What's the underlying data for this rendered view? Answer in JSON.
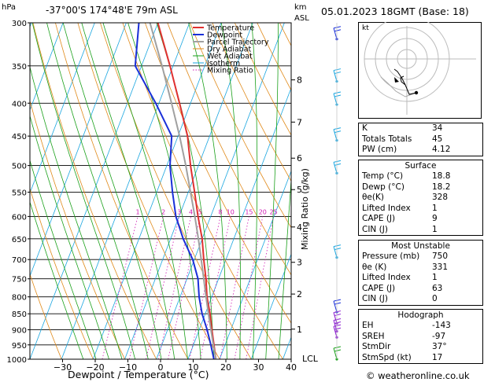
{
  "header": {
    "hpa": "hPa",
    "location": "-37°00'S  174°48'E  79m  ASL",
    "km": "km",
    "asl": "ASL",
    "datetime": "05.01.2023  18GMT  (Base: 18)"
  },
  "axes": {
    "xlabel": "Dewpoint / Temperature (°C)",
    "ylabel_right": "Mixing Ratio (g/kg)",
    "lcl": "LCL",
    "footer": "© weatheronline.co.uk",
    "kt": "kt"
  },
  "legend": [
    "Temperature",
    "Dewpoint",
    "Parcel Trajectory",
    "Dry Adiabat",
    "Wet Adiabat",
    "Isotherm",
    "Mixing Ratio"
  ],
  "colors": {
    "temperature": "#e03030",
    "dewpoint": "#1a2fd8",
    "parcel": "#a0a0a0",
    "dry_adiabat": "#e08a1a",
    "wet_adiabat": "#1aa01a",
    "isotherm": "#1aa6e0",
    "mixing_ratio": "#d01ab4"
  },
  "indices": [
    {
      "k": "K",
      "v": "34"
    },
    {
      "k": "Totals Totals",
      "v": "45"
    },
    {
      "k": "PW (cm)",
      "v": "4.12"
    }
  ],
  "surface": {
    "title": "Surface",
    "rows": [
      {
        "k": "Temp (°C)",
        "v": "18.8"
      },
      {
        "k": "Dewp (°C)",
        "v": "18.2"
      },
      {
        "k": "θe(K)",
        "v": "328"
      },
      {
        "k": "Lifted Index",
        "v": "1"
      },
      {
        "k": "CAPE (J)",
        "v": "9"
      },
      {
        "k": "CIN (J)",
        "v": "1"
      }
    ]
  },
  "most_unstable": {
    "title": "Most Unstable",
    "rows": [
      {
        "k": "Pressure (mb)",
        "v": "750"
      },
      {
        "k": "θe (K)",
        "v": "331"
      },
      {
        "k": "Lifted Index",
        "v": "1"
      },
      {
        "k": "CAPE (J)",
        "v": "63"
      },
      {
        "k": "CIN (J)",
        "v": "0"
      }
    ]
  },
  "hodograph": {
    "title": "Hodograph",
    "rows": [
      {
        "k": "EH",
        "v": "-143"
      },
      {
        "k": "SREH",
        "v": "-97"
      },
      {
        "k": "StmDir",
        "v": "37°"
      },
      {
        "k": "StmSpd (kt)",
        "v": "17"
      }
    ]
  },
  "chart_data": {
    "type": "line",
    "title": "",
    "xlabel": "Dewpoint / Temperature (°C)",
    "ylabel": "hPa",
    "xlim": [
      -40,
      40
    ],
    "ylim": [
      1000,
      300
    ],
    "pressure_ticks": [
      300,
      350,
      400,
      450,
      500,
      550,
      600,
      650,
      700,
      750,
      800,
      850,
      900,
      950,
      1000
    ],
    "temp_ticks": [
      -30,
      -20,
      -10,
      0,
      10,
      20,
      30,
      40
    ],
    "km_ticks": [
      {
        "label": "8",
        "p": 368
      },
      {
        "label": "7",
        "p": 428
      },
      {
        "label": "6",
        "p": 487
      },
      {
        "label": "5",
        "p": 545
      },
      {
        "label": "4",
        "p": 623
      },
      {
        "label": "3",
        "p": 707
      },
      {
        "label": "2",
        "p": 792
      },
      {
        "label": "1",
        "p": 898
      }
    ],
    "mixing_ratio_labels": [
      {
        "label": "1",
        "w": 1
      },
      {
        "label": "2",
        "w": 2
      },
      {
        "label": "3",
        "w": 3
      },
      {
        "label": "4",
        "w": 4
      },
      {
        "label": "5",
        "w": 5
      },
      {
        "label": "8",
        "w": 8
      },
      {
        "label": "10",
        "w": 10
      },
      {
        "label": "15",
        "w": 15
      },
      {
        "label": "20",
        "w": 20
      },
      {
        "label": "25",
        "w": 25
      }
    ],
    "series": [
      {
        "name": "Temperature",
        "points": [
          [
            1000,
            18.8
          ],
          [
            950,
            16.5
          ],
          [
            900,
            14
          ],
          [
            850,
            11.5
          ],
          [
            800,
            8.5
          ],
          [
            750,
            6
          ],
          [
            700,
            3
          ],
          [
            650,
            0
          ],
          [
            600,
            -4
          ],
          [
            550,
            -8
          ],
          [
            500,
            -12.5
          ],
          [
            450,
            -17
          ],
          [
            400,
            -23.5
          ],
          [
            350,
            -31
          ],
          [
            300,
            -40
          ]
        ]
      },
      {
        "name": "Dewpoint",
        "points": [
          [
            1000,
            18.2
          ],
          [
            950,
            15.5
          ],
          [
            900,
            12.5
          ],
          [
            850,
            9
          ],
          [
            800,
            6
          ],
          [
            750,
            3.5
          ],
          [
            700,
            -0.5
          ],
          [
            650,
            -6
          ],
          [
            600,
            -11
          ],
          [
            550,
            -15
          ],
          [
            500,
            -19
          ],
          [
            450,
            -22
          ],
          [
            400,
            -31
          ],
          [
            350,
            -42
          ],
          [
            300,
            -46
          ]
        ]
      },
      {
        "name": "Parcel Trajectory",
        "points": [
          [
            1000,
            18.8
          ],
          [
            950,
            16.3
          ],
          [
            900,
            13.7
          ],
          [
            850,
            11
          ],
          [
            800,
            8.2
          ],
          [
            750,
            5.3
          ],
          [
            700,
            2.2
          ],
          [
            650,
            -1.2
          ],
          [
            600,
            -5
          ],
          [
            550,
            -9.3
          ],
          [
            500,
            -14
          ],
          [
            450,
            -19.5
          ],
          [
            400,
            -26
          ],
          [
            350,
            -33.5
          ],
          [
            300,
            -42.5
          ]
        ]
      }
    ]
  }
}
